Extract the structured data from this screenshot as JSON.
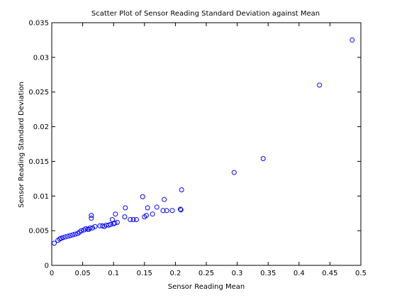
{
  "chart_data": {
    "type": "scatter",
    "title": "Scatter Plot of Sensor Reading Standard Deviation against Mean",
    "xlabel": "Sensor Reading Mean",
    "ylabel": "Sensor Reading Standard Deviation",
    "xlim": [
      0,
      0.5
    ],
    "ylim": [
      0,
      0.035
    ],
    "xticks": [
      0,
      0.05,
      0.1,
      0.15,
      0.2,
      0.25,
      0.3,
      0.35,
      0.4,
      0.45,
      0.5
    ],
    "xtick_labels": [
      "0",
      "0.05",
      "0.1",
      "0.15",
      "0.2",
      "0.25",
      "0.3",
      "0.35",
      "0.4",
      "0.45",
      "0.5"
    ],
    "yticks": [
      0,
      0.005,
      0.01,
      0.015,
      0.02,
      0.025,
      0.03,
      0.035
    ],
    "ytick_labels": [
      "0",
      "0.005",
      "0.01",
      "0.015",
      "0.02",
      "0.025",
      "0.03",
      "0.035"
    ],
    "grid": false,
    "legend": false,
    "marker_color": "#0000ff",
    "series": [
      {
        "points": [
          [
            0.004,
            0.0032
          ],
          [
            0.01,
            0.0036
          ],
          [
            0.013,
            0.0038
          ],
          [
            0.015,
            0.0039
          ],
          [
            0.018,
            0.004
          ],
          [
            0.022,
            0.0041
          ],
          [
            0.026,
            0.0042
          ],
          [
            0.03,
            0.0043
          ],
          [
            0.034,
            0.0044
          ],
          [
            0.038,
            0.0045
          ],
          [
            0.042,
            0.0046
          ],
          [
            0.045,
            0.0048
          ],
          [
            0.048,
            0.005
          ],
          [
            0.052,
            0.0051
          ],
          [
            0.055,
            0.0053
          ],
          [
            0.058,
            0.0052
          ],
          [
            0.06,
            0.0052
          ],
          [
            0.062,
            0.0054
          ],
          [
            0.064,
            0.0068
          ],
          [
            0.064,
            0.0072
          ],
          [
            0.066,
            0.0054
          ],
          [
            0.07,
            0.0056
          ],
          [
            0.078,
            0.0057
          ],
          [
            0.082,
            0.0057
          ],
          [
            0.085,
            0.0056
          ],
          [
            0.088,
            0.0058
          ],
          [
            0.092,
            0.0058
          ],
          [
            0.095,
            0.0059
          ],
          [
            0.098,
            0.0066
          ],
          [
            0.1,
            0.006
          ],
          [
            0.102,
            0.0061
          ],
          [
            0.103,
            0.0074
          ],
          [
            0.106,
            0.0062
          ],
          [
            0.118,
            0.007
          ],
          [
            0.119,
            0.0083
          ],
          [
            0.127,
            0.0066
          ],
          [
            0.132,
            0.0066
          ],
          [
            0.137,
            0.0066
          ],
          [
            0.147,
            0.0099
          ],
          [
            0.15,
            0.007
          ],
          [
            0.153,
            0.0072
          ],
          [
            0.155,
            0.0083
          ],
          [
            0.163,
            0.0074
          ],
          [
            0.17,
            0.0084
          ],
          [
            0.18,
            0.0079
          ],
          [
            0.182,
            0.0095
          ],
          [
            0.186,
            0.0079
          ],
          [
            0.195,
            0.0079
          ],
          [
            0.208,
            0.0081
          ],
          [
            0.209,
            0.008
          ],
          [
            0.21,
            0.0109
          ],
          [
            0.295,
            0.0134
          ],
          [
            0.342,
            0.0154
          ],
          [
            0.433,
            0.026
          ],
          [
            0.486,
            0.0325
          ]
        ]
      }
    ]
  }
}
